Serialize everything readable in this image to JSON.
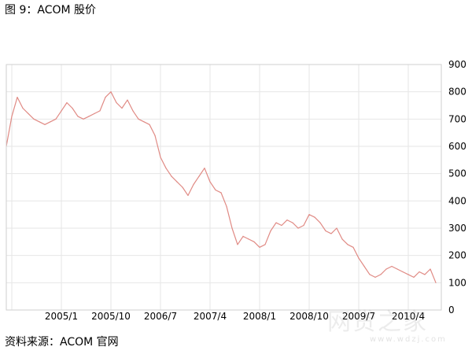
{
  "figure": {
    "title": "图 9：ACOM 股价",
    "source": "资料来源：ACOM 官网"
  },
  "watermark": {
    "text": "网贷之家",
    "subtext": "www.wdzj.com"
  },
  "chart_data": {
    "type": "line",
    "title": "图 9：ACOM 股价",
    "xlabel": "",
    "ylabel": "",
    "ylim": [
      0,
      900
    ],
    "yticks": [
      0,
      100,
      200,
      300,
      400,
      500,
      600,
      700,
      800,
      900
    ],
    "xticks": [
      "2005/1",
      "2005/10",
      "2006/7",
      "2007/4",
      "2008/1",
      "2008/10",
      "2009/7",
      "2010/4"
    ],
    "grid": true,
    "y_axis_side": "right",
    "series_color": "#e08a84",
    "series": [
      {
        "name": "",
        "x": [
          "2004/3",
          "2004/4",
          "2004/5",
          "2004/6",
          "2004/7",
          "2004/8",
          "2004/9",
          "2004/10",
          "2004/11",
          "2004/12",
          "2005/1",
          "2005/2",
          "2005/3",
          "2005/4",
          "2005/5",
          "2005/6",
          "2005/7",
          "2005/8",
          "2005/9",
          "2005/10",
          "2005/11",
          "2005/12",
          "2006/1",
          "2006/2",
          "2006/3",
          "2006/4",
          "2006/5",
          "2006/6",
          "2006/7",
          "2006/8",
          "2006/9",
          "2006/10",
          "2006/11",
          "2006/12",
          "2007/1",
          "2007/2",
          "2007/3",
          "2007/4",
          "2007/5",
          "2007/6",
          "2007/7",
          "2007/8",
          "2007/9",
          "2007/10",
          "2007/11",
          "2007/12",
          "2008/1",
          "2008/2",
          "2008/3",
          "2008/4",
          "2008/5",
          "2008/6",
          "2008/7",
          "2008/8",
          "2008/9",
          "2008/10",
          "2008/11",
          "2008/12",
          "2009/1",
          "2009/2",
          "2009/3",
          "2009/4",
          "2009/5",
          "2009/6",
          "2009/7",
          "2009/8",
          "2009/9",
          "2009/10",
          "2009/11",
          "2009/12",
          "2010/1",
          "2010/2",
          "2010/3",
          "2010/4",
          "2010/5",
          "2010/6",
          "2010/7",
          "2010/8",
          "2010/9"
        ],
        "values": [
          600,
          710,
          780,
          740,
          720,
          700,
          690,
          680,
          690,
          700,
          730,
          760,
          740,
          710,
          700,
          710,
          720,
          730,
          780,
          800,
          760,
          740,
          770,
          730,
          700,
          690,
          680,
          640,
          560,
          520,
          490,
          470,
          450,
          420,
          460,
          490,
          520,
          470,
          440,
          430,
          380,
          300,
          240,
          270,
          260,
          250,
          230,
          240,
          290,
          320,
          310,
          330,
          320,
          300,
          310,
          350,
          340,
          320,
          290,
          280,
          300,
          260,
          240,
          230,
          190,
          160,
          130,
          120,
          130,
          150,
          160,
          150,
          140,
          130,
          120,
          140,
          130,
          150,
          100
        ]
      }
    ]
  }
}
